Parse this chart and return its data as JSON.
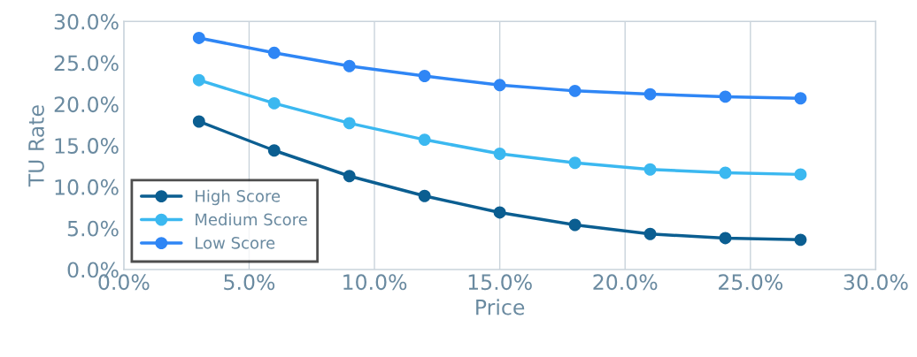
{
  "chart_data": {
    "type": "line",
    "xlabel": "Price",
    "ylabel": "TU Rate",
    "x": [
      3,
      6,
      9,
      12,
      15,
      18,
      21,
      24,
      27
    ],
    "series": [
      {
        "name": "High Score",
        "color": "#0b5e91",
        "values": [
          17.9,
          14.4,
          11.3,
          8.9,
          6.9,
          5.4,
          4.3,
          3.8,
          3.6
        ]
      },
      {
        "name": "Medium Score",
        "color": "#3bb8f0",
        "values": [
          22.9,
          20.1,
          17.7,
          15.7,
          14.0,
          12.9,
          12.1,
          11.7,
          11.5
        ]
      },
      {
        "name": "Low Score",
        "color": "#2f86f5",
        "values": [
          28.0,
          26.2,
          24.6,
          23.4,
          22.3,
          21.6,
          21.2,
          20.9,
          20.7
        ]
      }
    ],
    "xlim": [
      0,
      30
    ],
    "ylim": [
      0,
      30
    ],
    "xticks": [
      {
        "value": 0,
        "label": "0.0%"
      },
      {
        "value": 5,
        "label": "5.0%"
      },
      {
        "value": 10,
        "label": "10.0%"
      },
      {
        "value": 15,
        "label": "15.0%"
      },
      {
        "value": 20,
        "label": "20.0%"
      },
      {
        "value": 25,
        "label": "25.0%"
      },
      {
        "value": 30,
        "label": "30.0%"
      }
    ],
    "yticks": [
      {
        "value": 0,
        "label": "0.0%"
      },
      {
        "value": 5,
        "label": "5.0%"
      },
      {
        "value": 10,
        "label": "10.0%"
      },
      {
        "value": 15,
        "label": "15.0%"
      },
      {
        "value": 20,
        "label": "20.0%"
      },
      {
        "value": 25,
        "label": "25.0%"
      },
      {
        "value": 30,
        "label": "30.0%"
      }
    ],
    "grid": "x",
    "legend": "bottom left",
    "marker": "circle",
    "line_style": "solid"
  }
}
